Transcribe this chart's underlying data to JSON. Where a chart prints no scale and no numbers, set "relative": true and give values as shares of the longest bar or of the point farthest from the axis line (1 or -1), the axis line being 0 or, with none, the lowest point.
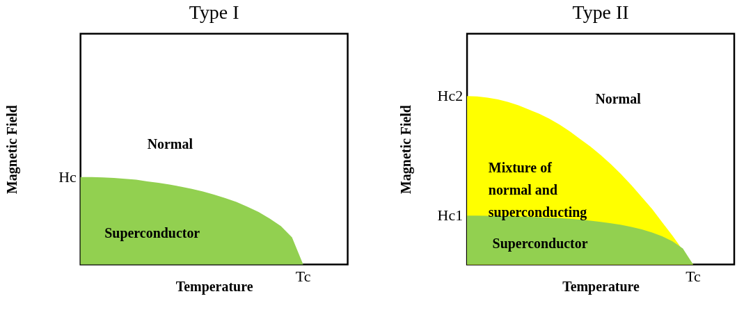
{
  "chart_data": [
    {
      "type": "area",
      "relative": true,
      "title": "Type I",
      "xlabel": "Temperature",
      "ylabel": "Magnetic Field",
      "ylim": [
        0,
        2.64
      ],
      "legend": false,
      "categories": [
        null,
        null,
        null,
        null,
        null,
        null,
        null,
        null,
        null,
        null,
        null,
        null,
        null,
        null,
        null,
        null,
        null,
        null,
        null,
        null,
        null,
        null,
        null,
        null,
        null
      ],
      "series": [
        {
          "color": "#92d050",
          "values": [
            1,
            1,
            0.995,
            0.99,
            0.98,
            0.97,
            0.95,
            0.935,
            0.915,
            0.89,
            0.865,
            0.835,
            0.8,
            0.76,
            0.715,
            0.66,
            0.6,
            0.525,
            0.44,
            0.31,
            0,
            null,
            null,
            null,
            null
          ]
        }
      ],
      "annotations": [
        "Hc",
        "Tc",
        "Normal",
        "Superconductor"
      ]
    },
    {
      "type": "area",
      "relative": true,
      "title": "Type II",
      "xlabel": "Temperature",
      "ylabel": "Magnetic Field",
      "ylim": [
        0,
        1.37
      ],
      "legend": false,
      "categories": [
        null,
        null,
        null,
        null,
        null,
        null,
        null,
        null,
        null,
        null,
        null,
        null,
        null,
        null,
        null,
        null,
        null,
        null,
        null,
        null,
        null,
        null,
        null,
        null,
        null,
        null,
        null
      ],
      "series": [
        {
          "color": "#ffff00",
          "values": [
            1,
            0.998,
            0.99,
            0.98,
            0.965,
            0.945,
            0.92,
            0.895,
            0.865,
            0.83,
            0.79,
            0.745,
            0.7,
            0.65,
            0.595,
            0.535,
            0.47,
            0.4,
            0.33,
            0.25,
            0.17,
            0.085,
            0,
            null,
            null,
            null,
            null
          ]
        },
        {
          "color": "#92d050",
          "values": [
            0.29,
            0.29,
            0.289,
            0.288,
            0.287,
            0.285,
            0.283,
            0.281,
            0.278,
            0.275,
            0.271,
            0.266,
            0.26,
            0.253,
            0.245,
            0.235,
            0.223,
            0.208,
            0.19,
            0.167,
            0.137,
            0.095,
            0,
            null,
            null,
            null,
            null
          ]
        }
      ],
      "annotations": [
        "Hc2",
        "Hc1",
        "Tc",
        "Normal",
        "Mixture of\nnormal and\nsuperconducting",
        "Superconductor"
      ]
    }
  ]
}
